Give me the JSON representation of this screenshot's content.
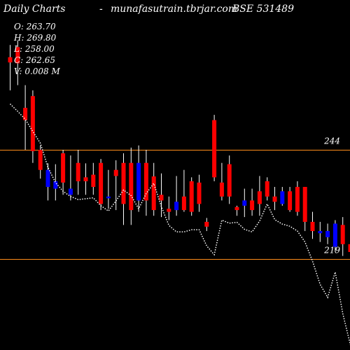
{
  "header": {
    "title": "Daily Charts",
    "dash": "-",
    "site": "munafasutrain.tbrjar.com",
    "symbol": "BSE 531489"
  },
  "ohlc": {
    "open": "O: 263.70",
    "high": "H: 269.80",
    "low": "L: 258.00",
    "close": "C: 262.65",
    "volume": "V: 0.008  M"
  },
  "colors": {
    "background": "#000000",
    "up": "#0000ff",
    "down": "#ff0000",
    "wick": "#ffffff",
    "level_line": "#ff8c1a",
    "ma_line": "#ffffff"
  },
  "chart_data": {
    "type": "candlestick",
    "y_scale": {
      "ref_price_a": 244,
      "ref_price_b": 219
    },
    "levels": [
      {
        "label": "244",
        "value": 244
      },
      {
        "label": "219",
        "value": 219
      }
    ],
    "candles": [
      {
        "o": 264.0,
        "h": 268.0,
        "l": 257.6,
        "c": 265.2,
        "color": "down"
      },
      {
        "o": 267.5,
        "h": 269.0,
        "l": 258.8,
        "c": 263.8,
        "color": "down"
      },
      {
        "o": 253.6,
        "h": 258.8,
        "l": 244.0,
        "c": 250.8,
        "color": "down"
      },
      {
        "o": 256.3,
        "h": 257.6,
        "l": 241.0,
        "c": 243.7,
        "color": "down"
      },
      {
        "o": 244.0,
        "h": 245.0,
        "l": 237.4,
        "c": 239.4,
        "color": "down"
      },
      {
        "o": 239.4,
        "h": 240.9,
        "l": 232.4,
        "c": 235.5,
        "color": "up"
      },
      {
        "o": 236.8,
        "h": 240.7,
        "l": 232.4,
        "c": 235.1,
        "color": "up"
      },
      {
        "o": 243.2,
        "h": 244.0,
        "l": 233.7,
        "c": 236.5,
        "color": "down"
      },
      {
        "o": 235.1,
        "h": 242.7,
        "l": 232.4,
        "c": 233.7,
        "color": "up"
      },
      {
        "o": 241.0,
        "h": 244.0,
        "l": 233.7,
        "c": 236.8,
        "color": "down"
      },
      {
        "o": 237.7,
        "h": 240.9,
        "l": 233.7,
        "c": 236.8,
        "color": "down"
      },
      {
        "o": 238.3,
        "h": 241.0,
        "l": 233.7,
        "c": 235.5,
        "color": "down"
      },
      {
        "o": 241.0,
        "h": 241.9,
        "l": 230.2,
        "c": 231.6,
        "color": "down"
      },
      {
        "o": 233.3,
        "h": 239.4,
        "l": 230.5,
        "c": 232.9,
        "color": "up"
      },
      {
        "o": 239.4,
        "h": 241.6,
        "l": 230.2,
        "c": 238.0,
        "color": "down"
      },
      {
        "o": 241.0,
        "h": 243.2,
        "l": 226.8,
        "c": 231.6,
        "color": "down"
      },
      {
        "o": 241.0,
        "h": 244.5,
        "l": 226.8,
        "c": 230.2,
        "color": "down"
      },
      {
        "o": 232.4,
        "h": 245.0,
        "l": 229.8,
        "c": 241.0,
        "color": "up"
      },
      {
        "o": 241.0,
        "h": 244.0,
        "l": 228.9,
        "c": 232.4,
        "color": "down"
      },
      {
        "o": 237.9,
        "h": 241.0,
        "l": 228.9,
        "c": 230.2,
        "color": "down"
      },
      {
        "o": 233.7,
        "h": 238.6,
        "l": 228.6,
        "c": 232.4,
        "color": "down"
      },
      {
        "o": 230.5,
        "h": 233.3,
        "l": 227.9,
        "c": 229.8,
        "color": "down"
      },
      {
        "o": 230.2,
        "h": 238.0,
        "l": 228.9,
        "c": 232.1,
        "color": "up"
      },
      {
        "o": 233.3,
        "h": 239.4,
        "l": 229.8,
        "c": 230.2,
        "color": "down"
      },
      {
        "o": 236.8,
        "h": 237.7,
        "l": 228.9,
        "c": 229.8,
        "color": "down"
      },
      {
        "o": 236.5,
        "h": 238.3,
        "l": 229.8,
        "c": 231.6,
        "color": "down"
      },
      {
        "o": 227.5,
        "h": 228.4,
        "l": 225.4,
        "c": 226.4,
        "color": "down"
      },
      {
        "o": 250.8,
        "h": 252.0,
        "l": 236.8,
        "c": 237.7,
        "color": "down"
      },
      {
        "o": 236.5,
        "h": 241.0,
        "l": 232.4,
        "c": 233.3,
        "color": "down"
      },
      {
        "o": 240.7,
        "h": 242.7,
        "l": 231.6,
        "c": 233.3,
        "color": "down"
      },
      {
        "o": 230.9,
        "h": 231.2,
        "l": 228.9,
        "c": 230.2,
        "color": "down"
      },
      {
        "o": 232.4,
        "h": 235.1,
        "l": 228.6,
        "c": 231.2,
        "color": "up"
      },
      {
        "o": 232.4,
        "h": 235.1,
        "l": 228.9,
        "c": 230.2,
        "color": "down"
      },
      {
        "o": 234.5,
        "h": 238.0,
        "l": 228.9,
        "c": 231.6,
        "color": "down"
      },
      {
        "o": 236.8,
        "h": 237.7,
        "l": 232.4,
        "c": 233.3,
        "color": "down"
      },
      {
        "o": 233.3,
        "h": 235.5,
        "l": 230.2,
        "c": 232.1,
        "color": "down"
      },
      {
        "o": 234.5,
        "h": 235.5,
        "l": 231.2,
        "c": 231.6,
        "color": "up"
      },
      {
        "o": 234.5,
        "h": 235.5,
        "l": 229.8,
        "c": 230.2,
        "color": "down"
      },
      {
        "o": 235.5,
        "h": 236.8,
        "l": 228.9,
        "c": 229.8,
        "color": "down"
      },
      {
        "o": 235.5,
        "h": 235.5,
        "l": 225.4,
        "c": 227.5,
        "color": "down"
      },
      {
        "o": 227.5,
        "h": 229.8,
        "l": 223.6,
        "c": 225.4,
        "color": "down"
      },
      {
        "o": 225.4,
        "h": 227.5,
        "l": 222.9,
        "c": 224.9,
        "color": "up"
      },
      {
        "o": 224.0,
        "h": 227.1,
        "l": 222.4,
        "c": 225.4,
        "color": "up"
      },
      {
        "o": 227.1,
        "h": 227.9,
        "l": 220.6,
        "c": 221.8,
        "color": "up"
      },
      {
        "o": 226.8,
        "h": 228.6,
        "l": 219.7,
        "c": 222.4,
        "color": "down"
      },
      {
        "o": 222.4,
        "h": 223.8,
        "l": 218.9,
        "c": 220.6,
        "color": "down"
      },
      {
        "o": 225.4,
        "h": 226.8,
        "l": 220.6,
        "c": 221.8,
        "color": "down"
      }
    ],
    "moving_average": [
      254.5,
      252.8,
      251.0,
      248.2,
      245.5,
      240.0,
      236.5,
      234.5,
      233.3,
      232.6,
      232.8,
      233.0,
      231.2,
      230.0,
      232.3,
      234.8,
      233.5,
      230.5,
      234.0,
      236.3,
      231.0,
      226.7,
      225.2,
      225.2,
      225.7,
      225.7,
      222.0,
      220.0,
      227.9,
      227.2,
      227.4,
      225.8,
      225.2,
      227.7,
      231.6,
      228.0,
      227.0,
      226.5,
      225.4,
      222.9,
      218.5,
      213.2,
      210.2,
      216.0,
      206.5,
      199.4,
      204.2
    ]
  }
}
